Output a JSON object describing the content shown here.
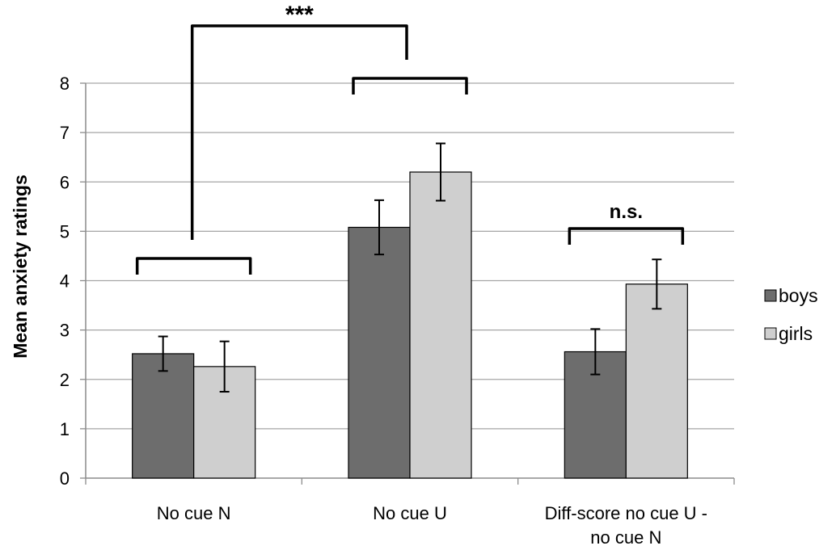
{
  "chart_data": {
    "type": "bar",
    "categories": [
      [
        "No cue N"
      ],
      [
        "No cue U"
      ],
      [
        "Diff-score no cue U -",
        "no cue N"
      ]
    ],
    "series": [
      {
        "name": "boys",
        "color": "#6d6d6d",
        "values": [
          2.52,
          5.08,
          2.56
        ],
        "errors": [
          0.35,
          0.55,
          0.46
        ]
      },
      {
        "name": "girls",
        "color": "#cfcfcf",
        "values": [
          2.26,
          6.2,
          3.93
        ],
        "errors": [
          0.51,
          0.58,
          0.5
        ]
      }
    ],
    "title": "",
    "xlabel": "",
    "ylabel": "Mean anxiety ratings",
    "ylim": [
      0,
      8
    ],
    "yticks": [
      0,
      1,
      2,
      3,
      4,
      5,
      6,
      7,
      8
    ],
    "grid": true,
    "legend_position": "right",
    "annotations": [
      {
        "label": "***",
        "type": "bracket",
        "between": [
          "No cue N",
          "No cue U"
        ]
      },
      {
        "label": "n.s.",
        "type": "bracket",
        "over": "Diff-score no cue U - no cue N"
      }
    ]
  }
}
